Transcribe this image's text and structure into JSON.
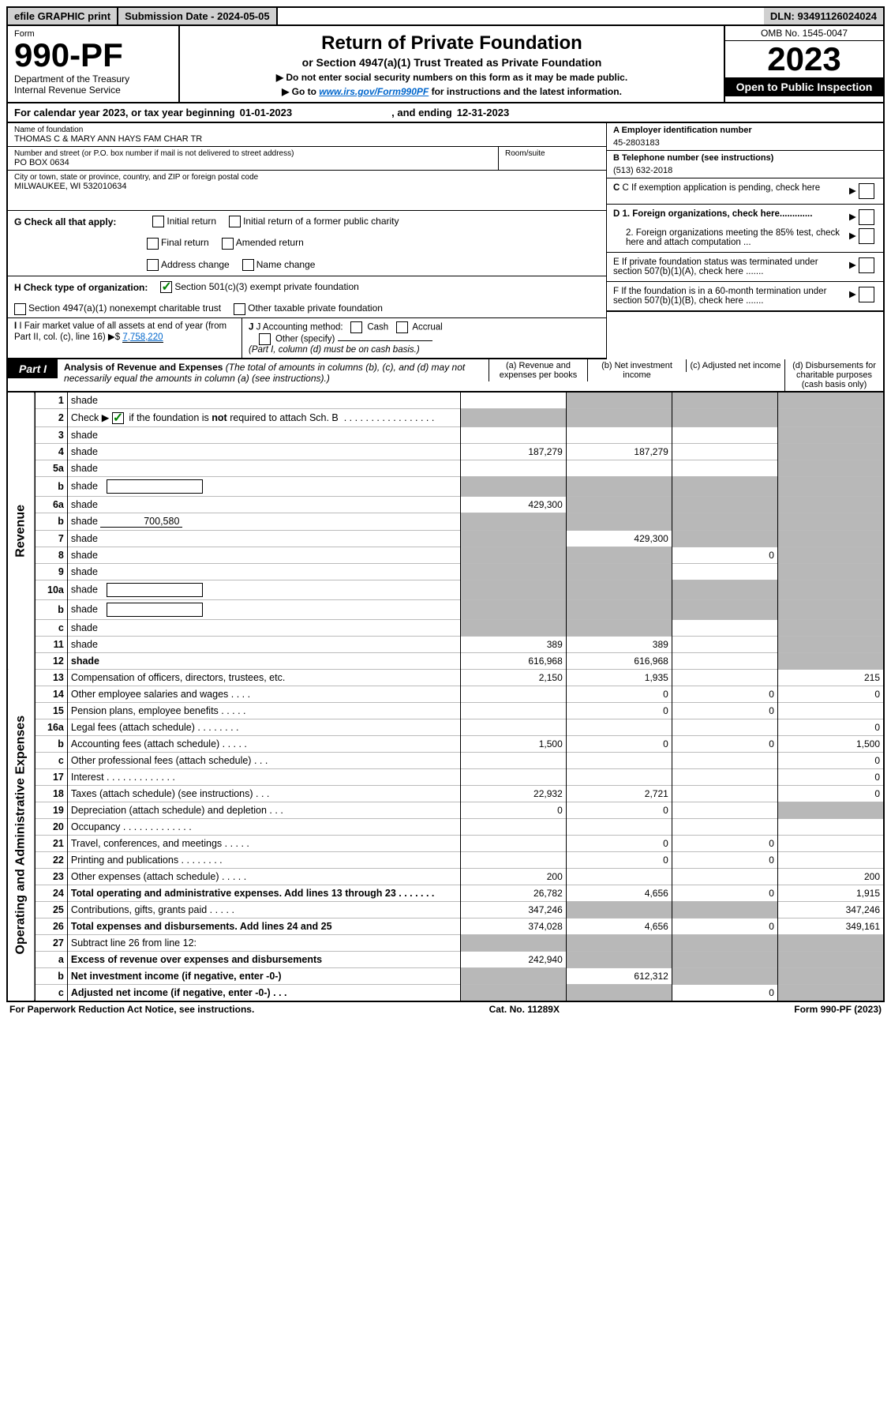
{
  "top": {
    "efile": "efile GRAPHIC print",
    "submission": "Submission Date - 2024-05-05",
    "dln": "DLN: 93491126024024"
  },
  "header": {
    "form_word": "Form",
    "form_number": "990-PF",
    "dept": "Department of the Treasury",
    "irs": "Internal Revenue Service",
    "title": "Return of Private Foundation",
    "subtitle": "or Section 4947(a)(1) Trust Treated as Private Foundation",
    "note1": "▶ Do not enter social security numbers on this form as it may be made public.",
    "note2_pre": "▶ Go to ",
    "note2_link": "www.irs.gov/Form990PF",
    "note2_post": " for instructions and the latest information.",
    "omb": "OMB No. 1545-0047",
    "year": "2023",
    "open": "Open to Public Inspection"
  },
  "cal": {
    "prefix": "For calendar year 2023, or tax year beginning ",
    "begin": "01-01-2023",
    "mid": ", and ending ",
    "end": "12-31-2023"
  },
  "info": {
    "name_lbl": "Name of foundation",
    "name_val": "THOMAS C & MARY ANN HAYS FAM CHAR TR",
    "addr_lbl": "Number and street (or P.O. box number if mail is not delivered to street address)",
    "addr_val": "PO BOX 0634",
    "room_lbl": "Room/suite",
    "city_lbl": "City or town, state or province, country, and ZIP or foreign postal code",
    "city_val": "MILWAUKEE, WI  532010634",
    "a_lbl": "A Employer identification number",
    "a_val": "45-2803183",
    "b_lbl": "B Telephone number (see instructions)",
    "b_val": "(513) 632-2018",
    "c_lbl": "C If exemption application is pending, check here",
    "d1": "D 1. Foreign organizations, check here.............",
    "d2": "2. Foreign organizations meeting the 85% test, check here and attach computation ...",
    "e": "E  If private foundation status was terminated under section 507(b)(1)(A), check here .......",
    "f": "F  If the foundation is in a 60-month termination under section 507(b)(1)(B), check here .......",
    "g_lbl": "G Check all that apply:",
    "g_opts": [
      "Initial return",
      "Initial return of a former public charity",
      "Final return",
      "Amended return",
      "Address change",
      "Name change"
    ],
    "h_lbl": "H Check type of organization:",
    "h_501c3": "Section 501(c)(3) exempt private foundation",
    "h_4947": "Section 4947(a)(1) nonexempt charitable trust",
    "h_other": "Other taxable private foundation",
    "i_lbl": "I Fair market value of all assets at end of year (from Part II, col. (c), line 16)",
    "i_val": "7,758,220",
    "j_lbl": "J Accounting method:",
    "j_cash": "Cash",
    "j_accrual": "Accrual",
    "j_other": "Other (specify)",
    "j_note": "(Part I, column (d) must be on cash basis.)"
  },
  "part1": {
    "badge": "Part I",
    "title": "Analysis of Revenue and Expenses",
    "title_note": "(The total of amounts in columns (b), (c), and (d) may not necessarily equal the amounts in column (a) (see instructions).)",
    "col_a": "(a)  Revenue and expenses per books",
    "col_b": "(b)  Net investment income",
    "col_c": "(c)  Adjusted net income",
    "col_d": "(d)  Disbursements for charitable purposes (cash basis only)"
  },
  "side_labels": {
    "revenue": "Revenue",
    "expenses": "Operating and Administrative Expenses"
  },
  "rows": [
    {
      "n": "1",
      "d": "shade",
      "a": "",
      "b": "shade",
      "c": "shade"
    },
    {
      "n": "2",
      "d": "shade",
      "a": "shade",
      "b": "shade",
      "c": "shade",
      "check2": true
    },
    {
      "n": "3",
      "d": "shade",
      "a": "",
      "b": "",
      "c": ""
    },
    {
      "n": "4",
      "d": "shade",
      "a": "187,279",
      "b": "187,279",
      "c": ""
    },
    {
      "n": "5a",
      "d": "shade",
      "a": "",
      "b": "",
      "c": ""
    },
    {
      "n": "b",
      "d": "shade",
      "a": "shade",
      "b": "shade",
      "c": "shade",
      "inline_box": true
    },
    {
      "n": "6a",
      "d": "shade",
      "a": "429,300",
      "b": "shade",
      "c": "shade"
    },
    {
      "n": "b",
      "d": "shade",
      "a": "shade",
      "b": "shade",
      "c": "shade",
      "inline_val": "700,580"
    },
    {
      "n": "7",
      "d": "shade",
      "a": "shade",
      "b": "429,300",
      "c": "shade"
    },
    {
      "n": "8",
      "d": "shade",
      "a": "shade",
      "b": "shade",
      "c": "0"
    },
    {
      "n": "9",
      "d": "shade",
      "a": "shade",
      "b": "shade",
      "c": ""
    },
    {
      "n": "10a",
      "d": "shade",
      "a": "shade",
      "b": "shade",
      "c": "shade",
      "inline_box": true
    },
    {
      "n": "b",
      "d": "shade",
      "a": "shade",
      "b": "shade",
      "c": "shade",
      "inline_box": true
    },
    {
      "n": "c",
      "d": "shade",
      "a": "shade",
      "b": "shade",
      "c": ""
    },
    {
      "n": "11",
      "d": "shade",
      "a": "389",
      "b": "389",
      "c": ""
    },
    {
      "n": "12",
      "d": "shade",
      "a": "616,968",
      "b": "616,968",
      "c": "",
      "bold": true
    }
  ],
  "exp_rows": [
    {
      "n": "13",
      "d": "215",
      "a": "2,150",
      "b": "1,935",
      "c": ""
    },
    {
      "n": "14",
      "d": "0",
      "a": "",
      "b": "0",
      "c": "0"
    },
    {
      "n": "15",
      "d": "",
      "a": "",
      "b": "0",
      "c": "0"
    },
    {
      "n": "16a",
      "d": "0",
      "a": "",
      "b": "",
      "c": ""
    },
    {
      "n": "b",
      "d": "1,500",
      "a": "1,500",
      "b": "0",
      "c": "0"
    },
    {
      "n": "c",
      "d": "0",
      "a": "",
      "b": "",
      "c": ""
    },
    {
      "n": "17",
      "d": "0",
      "a": "",
      "b": "",
      "c": ""
    },
    {
      "n": "18",
      "d": "0",
      "a": "22,932",
      "b": "2,721",
      "c": ""
    },
    {
      "n": "19",
      "d": "shade",
      "a": "0",
      "b": "0",
      "c": ""
    },
    {
      "n": "20",
      "d": "",
      "a": "",
      "b": "",
      "c": ""
    },
    {
      "n": "21",
      "d": "",
      "a": "",
      "b": "0",
      "c": "0"
    },
    {
      "n": "22",
      "d": "",
      "a": "",
      "b": "0",
      "c": "0"
    },
    {
      "n": "23",
      "d": "200",
      "a": "200",
      "b": "",
      "c": ""
    },
    {
      "n": "24",
      "d": "1,915",
      "a": "26,782",
      "b": "4,656",
      "c": "0",
      "bold": true
    },
    {
      "n": "25",
      "d": "347,246",
      "a": "347,246",
      "b": "shade",
      "c": "shade"
    },
    {
      "n": "26",
      "d": "349,161",
      "a": "374,028",
      "b": "4,656",
      "c": "0",
      "bold": true
    },
    {
      "n": "27",
      "d": "shade",
      "a": "shade",
      "b": "shade",
      "c": "shade"
    },
    {
      "n": "a",
      "d": "shade",
      "a": "242,940",
      "b": "shade",
      "c": "shade",
      "bold": true
    },
    {
      "n": "b",
      "d": "shade",
      "a": "shade",
      "b": "612,312",
      "c": "shade",
      "bold": true
    },
    {
      "n": "c",
      "d": "shade",
      "a": "shade",
      "b": "shade",
      "c": "0",
      "bold": true
    }
  ],
  "footer": {
    "left": "For Paperwork Reduction Act Notice, see instructions.",
    "mid": "Cat. No. 11289X",
    "right": "Form 990-PF (2023)"
  },
  "colors": {
    "shade": "#b8b8b8",
    "topbar_bg": "#d0d0d0",
    "check_green": "#008000"
  }
}
